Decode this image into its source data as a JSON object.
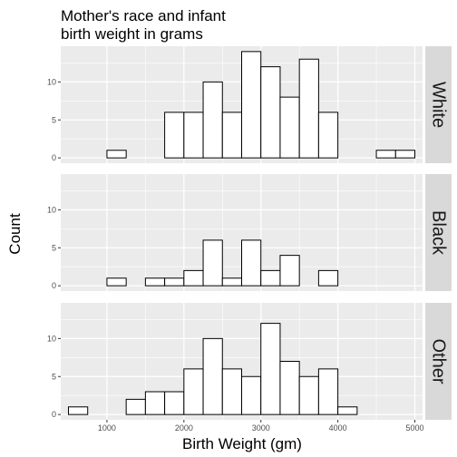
{
  "chart_data": {
    "type": "bar",
    "title_lines": [
      "Mother's race and infant",
      "birth weight in grams"
    ],
    "xlabel": "Birth Weight (gm)",
    "ylabel": "Count",
    "xlim": [
      400,
      5100
    ],
    "ylim": [
      -0.7,
      14.7
    ],
    "x_ticks": [
      1000,
      2000,
      3000,
      4000,
      5000
    ],
    "y_ticks": [
      0,
      5,
      10
    ],
    "bin_edges": [
      500,
      750,
      1000,
      1250,
      1500,
      1750,
      2000,
      2250,
      2500,
      2750,
      3000,
      3250,
      3500,
      3750,
      4000,
      4250,
      4500,
      4750,
      5000
    ],
    "grid": true,
    "panel_background": "#ebebeb",
    "strip_background": "#d9d9d9",
    "bar_fill": "#ffffff",
    "bar_outline": "#000000",
    "series": [
      {
        "name": "White",
        "values": [
          0,
          0,
          1,
          0,
          0,
          6,
          6,
          10,
          6,
          14,
          12,
          8,
          13,
          6,
          0,
          0,
          1,
          1
        ]
      },
      {
        "name": "Black",
        "values": [
          0,
          0,
          1,
          0,
          1,
          1,
          2,
          6,
          1,
          6,
          2,
          4,
          0,
          2,
          0,
          0,
          0,
          0
        ]
      },
      {
        "name": "Other",
        "values": [
          1,
          0,
          0,
          2,
          3,
          3,
          6,
          10,
          6,
          5,
          12,
          7,
          5,
          6,
          1,
          0,
          0,
          0
        ]
      }
    ]
  }
}
